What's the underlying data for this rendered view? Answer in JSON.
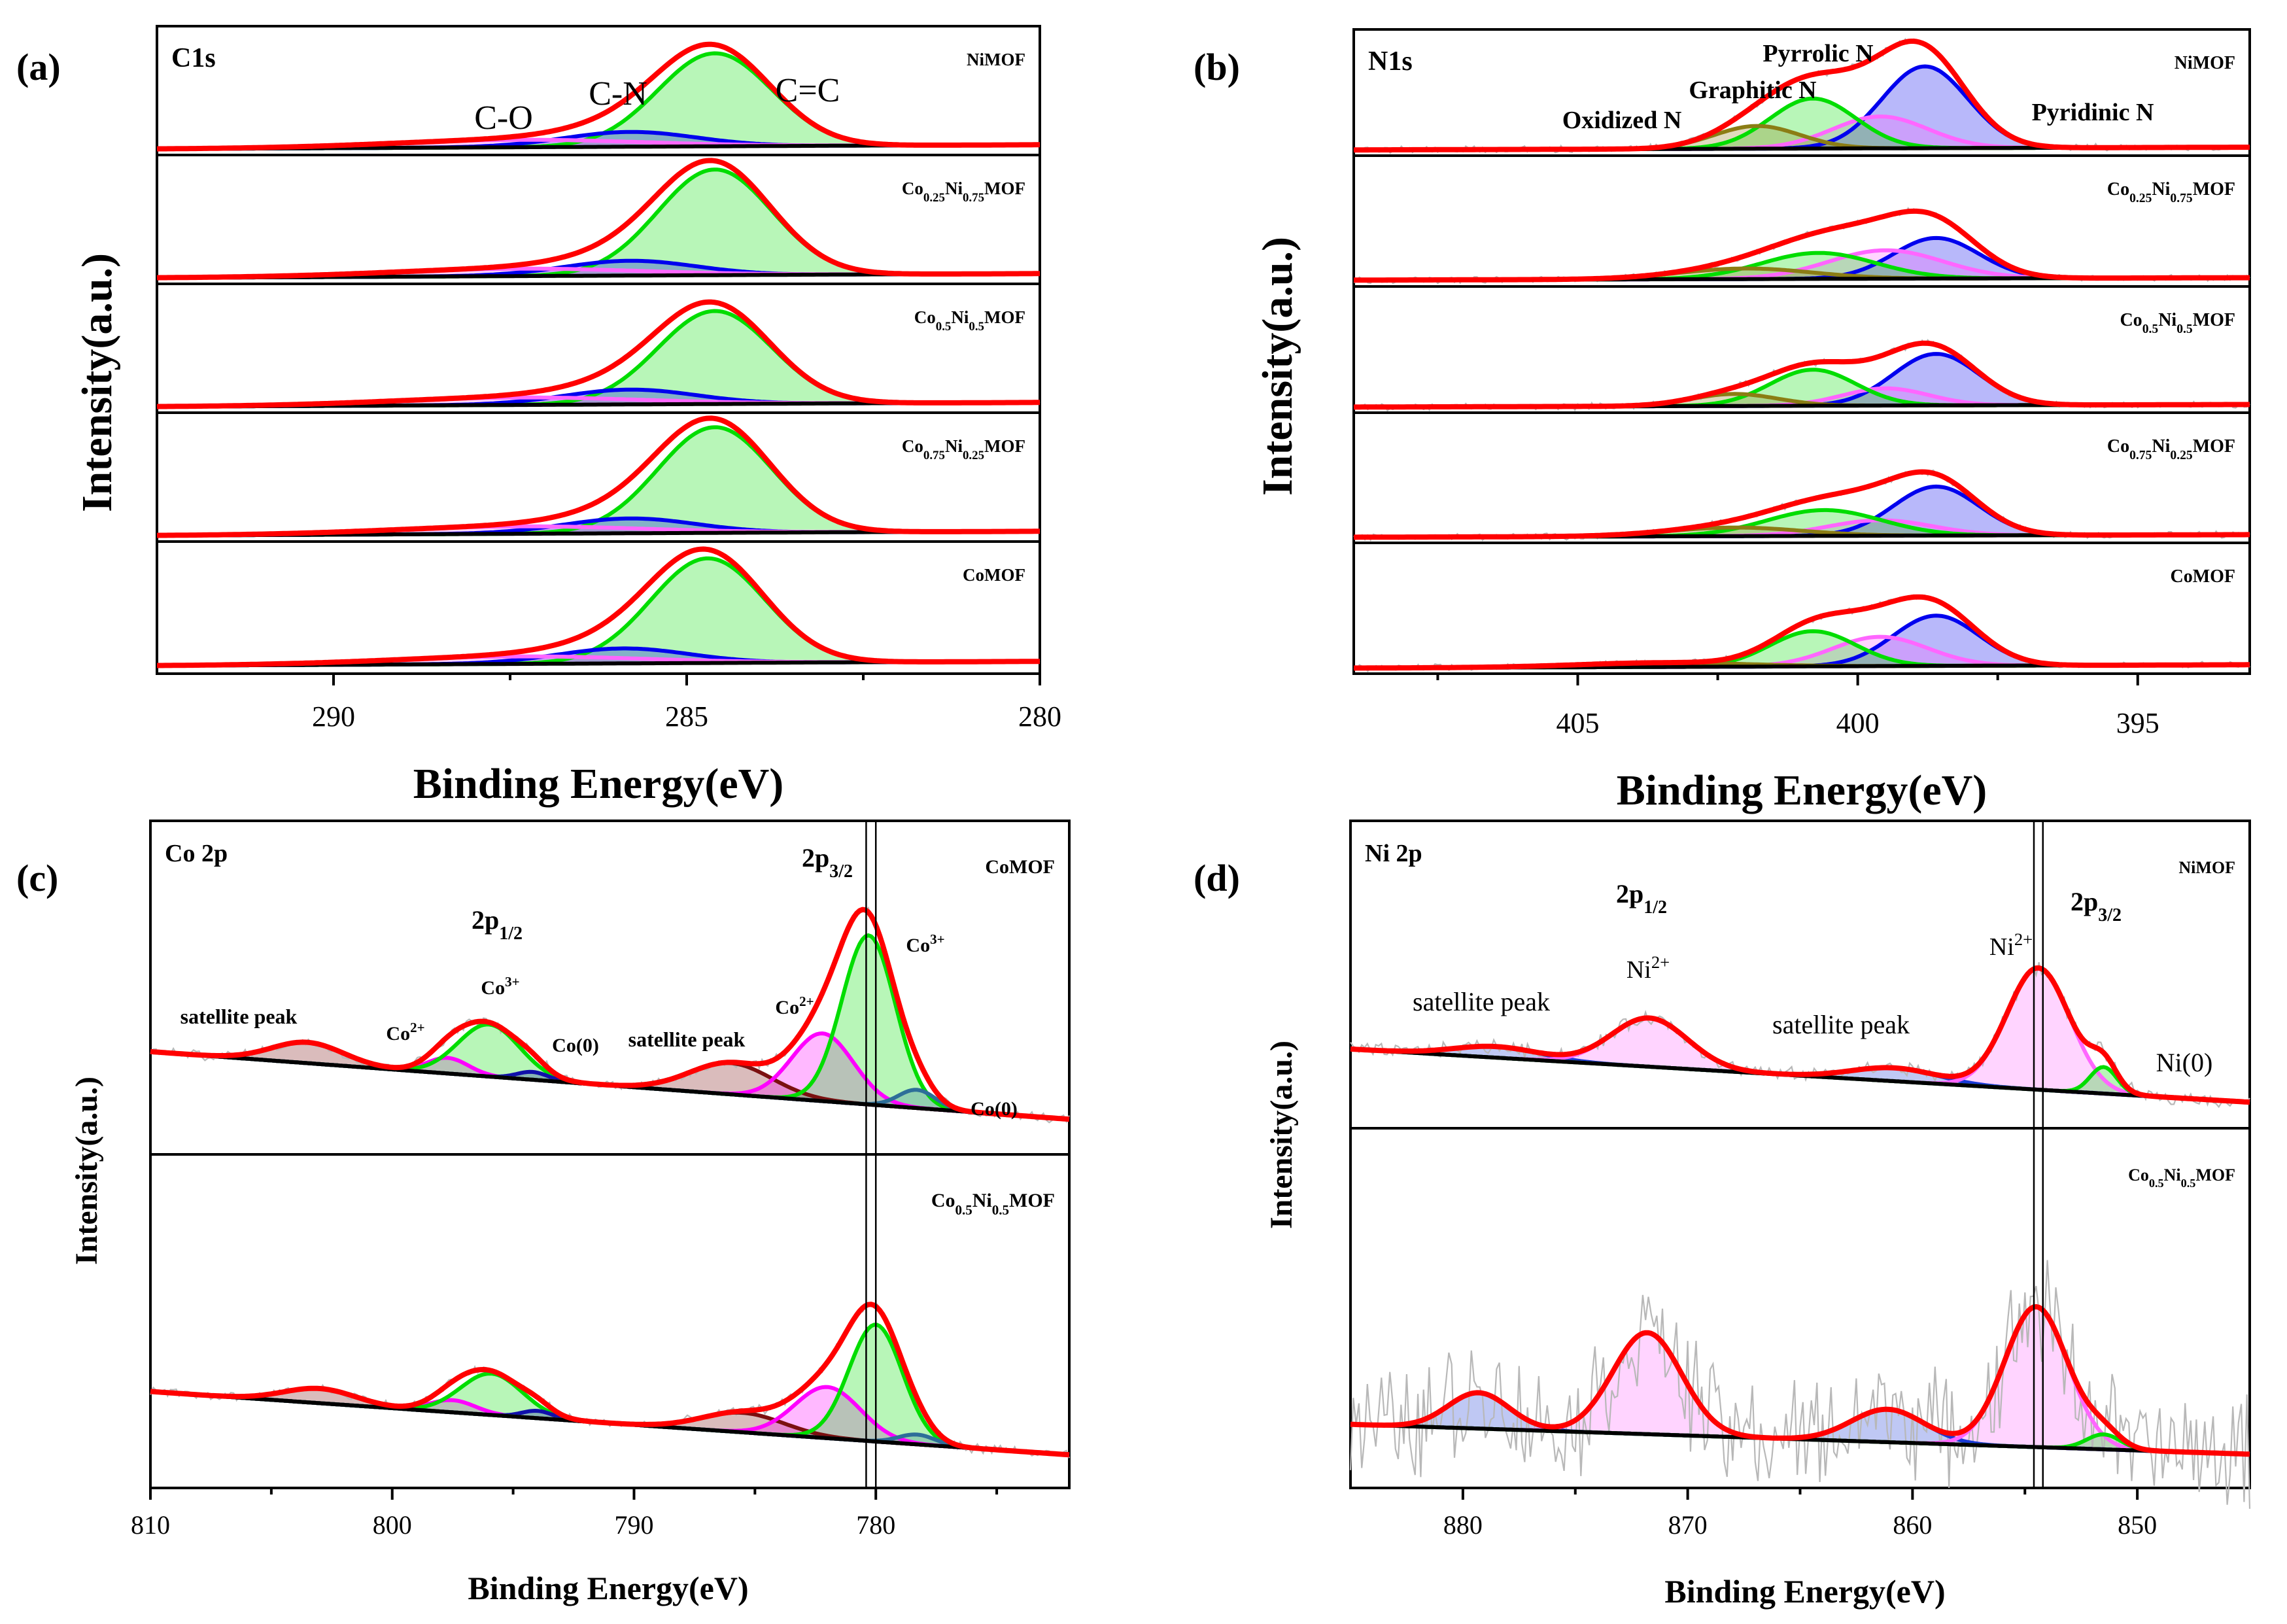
{
  "figure": {
    "panel_labels": [
      "(a)",
      "(b)",
      "(c)",
      "(d)"
    ],
    "colors": {
      "envelope": "#ff0000",
      "background": "#000000",
      "raw": "#b8b8b8",
      "green": "#00dd00",
      "blue": "#0000ee",
      "pink": "#ff66ff",
      "magenta": "#ff00ff",
      "olive": "#8b7d14",
      "brown": "#7b1010",
      "darkblue": "#1010aa",
      "steel": "#2d6e99"
    }
  },
  "chart_data": [
    {
      "id": "a",
      "type": "line",
      "title": "C1s",
      "xlabel": "Binding Energy(eV)",
      "ylabel": "Intensity(a.u.)",
      "xlim": [
        292.5,
        280
      ],
      "xticks": [
        290,
        285,
        280
      ],
      "xtick_labels": [
        "290",
        "285",
        "280"
      ],
      "peak_labels": [
        {
          "text": "C-O",
          "color": "#ff66ff"
        },
        {
          "text": "C-N",
          "color": "#0000ee"
        },
        {
          "text": "C=C",
          "color": "#00dd00"
        }
      ],
      "stacks": [
        {
          "sample": "NiMOF",
          "bg": [
            0.02,
            0.06
          ],
          "peaks": [
            {
              "label": "C=C",
              "center": 284.6,
              "fwhm": 1.9,
              "height": 0.88,
              "color": "#00dd00"
            },
            {
              "label": "C-N",
              "center": 285.8,
              "fwhm": 2.2,
              "height": 0.14,
              "color": "#0000ee"
            },
            {
              "label": "C-O",
              "center": 287.4,
              "fwhm": 4.2,
              "height": 0.07,
              "color": "#ff66ff"
            }
          ]
        },
        {
          "sample": "Co0.25Ni0.75MOF",
          "bg": [
            0.02,
            0.06
          ],
          "peaks": [
            {
              "label": "C=C",
              "center": 284.6,
              "fwhm": 1.9,
              "height": 1.0,
              "color": "#00dd00"
            },
            {
              "label": "C-N",
              "center": 285.8,
              "fwhm": 2.2,
              "height": 0.14,
              "color": "#0000ee"
            },
            {
              "label": "C-O",
              "center": 287.4,
              "fwhm": 4.2,
              "height": 0.07,
              "color": "#ff66ff"
            }
          ]
        },
        {
          "sample": "Co0.5Ni0.5MOF",
          "bg": [
            0.02,
            0.06
          ],
          "peaks": [
            {
              "label": "C=C",
              "center": 284.6,
              "fwhm": 1.9,
              "height": 0.88,
              "color": "#00dd00"
            },
            {
              "label": "C-N",
              "center": 285.8,
              "fwhm": 2.2,
              "height": 0.14,
              "color": "#0000ee"
            },
            {
              "label": "C-O",
              "center": 287.4,
              "fwhm": 4.2,
              "height": 0.07,
              "color": "#ff66ff"
            }
          ]
        },
        {
          "sample": "Co0.75Ni0.25MOF",
          "bg": [
            0.02,
            0.06
          ],
          "peaks": [
            {
              "label": "C=C",
              "center": 284.6,
              "fwhm": 1.9,
              "height": 1.0,
              "color": "#00dd00"
            },
            {
              "label": "C-N",
              "center": 285.8,
              "fwhm": 2.2,
              "height": 0.14,
              "color": "#0000ee"
            },
            {
              "label": "C-O",
              "center": 287.4,
              "fwhm": 4.2,
              "height": 0.07,
              "color": "#ff66ff"
            }
          ]
        },
        {
          "sample": "CoMOF",
          "bg": [
            0.02,
            0.06
          ],
          "peaks": [
            {
              "label": "C=C",
              "center": 284.7,
              "fwhm": 1.9,
              "height": 0.98,
              "color": "#00dd00"
            },
            {
              "label": "C-N",
              "center": 285.9,
              "fwhm": 2.2,
              "height": 0.14,
              "color": "#0000ee"
            },
            {
              "label": "C-O",
              "center": 287.4,
              "fwhm": 4.2,
              "height": 0.07,
              "color": "#ff66ff"
            }
          ]
        }
      ]
    },
    {
      "id": "b",
      "type": "line",
      "title": "N1s",
      "xlabel": "Binding Energy(eV)",
      "ylabel": "Intensity(a.u.)",
      "xlim": [
        409,
        393
      ],
      "xticks": [
        405,
        400,
        395
      ],
      "xtick_labels": [
        "405",
        "400",
        "395"
      ],
      "peak_labels": [
        {
          "text": "Oxidized N",
          "color": "#8b7d14"
        },
        {
          "text": "Graphitic N",
          "color": "#00bb00"
        },
        {
          "text": "Pyrrolic N",
          "color": "#ff66ff"
        },
        {
          "text": "Pyridinic N",
          "color": "#0000ee"
        }
      ],
      "stacks": [
        {
          "sample": "NiMOF",
          "bg": [
            0.02,
            0.05
          ],
          "peaks": [
            {
              "label": "Pyridinic N",
              "center": 398.8,
              "fwhm": 1.8,
              "height": 0.9,
              "color": "#0000ee"
            },
            {
              "label": "Pyrrolic N",
              "center": 399.6,
              "fwhm": 2.0,
              "height": 0.35,
              "color": "#ff66ff"
            },
            {
              "label": "Graphitic N",
              "center": 400.8,
              "fwhm": 1.8,
              "height": 0.55,
              "color": "#00dd00"
            },
            {
              "label": "Oxidized N",
              "center": 401.8,
              "fwhm": 1.8,
              "height": 0.25,
              "color": "#8b7d14"
            }
          ]
        },
        {
          "sample": "Co0.25Ni0.75MOF",
          "bg": [
            0.03,
            0.06
          ],
          "peaks": [
            {
              "label": "Pyridinic N",
              "center": 398.6,
              "fwhm": 1.8,
              "height": 0.5,
              "color": "#0000ee"
            },
            {
              "label": "Pyrrolic N",
              "center": 399.5,
              "fwhm": 2.4,
              "height": 0.35,
              "color": "#ff66ff"
            },
            {
              "label": "Graphitic N",
              "center": 400.7,
              "fwhm": 2.4,
              "height": 0.32,
              "color": "#00dd00"
            },
            {
              "label": "Oxidized N",
              "center": 402.0,
              "fwhm": 2.8,
              "height": 0.13,
              "color": "#8b7d14"
            }
          ]
        },
        {
          "sample": "Co0.5Ni0.5MOF",
          "bg": [
            0.02,
            0.05
          ],
          "peaks": [
            {
              "label": "Pyridinic N",
              "center": 398.6,
              "fwhm": 1.8,
              "height": 0.6,
              "color": "#0000ee"
            },
            {
              "label": "Pyrrolic N",
              "center": 399.5,
              "fwhm": 1.8,
              "height": 0.2,
              "color": "#ff66ff"
            },
            {
              "label": "Graphitic N",
              "center": 400.8,
              "fwhm": 1.8,
              "height": 0.42,
              "color": "#00dd00"
            },
            {
              "label": "Oxidized N",
              "center": 402.2,
              "fwhm": 1.8,
              "height": 0.14,
              "color": "#8b7d14"
            }
          ]
        },
        {
          "sample": "Co0.75Ni0.25MOF",
          "bg": [
            0.02,
            0.05
          ],
          "peaks": [
            {
              "label": "Pyridinic N",
              "center": 398.6,
              "fwhm": 1.8,
              "height": 0.57,
              "color": "#0000ee"
            },
            {
              "label": "Pyrrolic N",
              "center": 399.6,
              "fwhm": 2.2,
              "height": 0.18,
              "color": "#ff66ff"
            },
            {
              "label": "Graphitic N",
              "center": 400.6,
              "fwhm": 2.4,
              "height": 0.3,
              "color": "#00dd00"
            },
            {
              "label": "Oxidized N",
              "center": 402.2,
              "fwhm": 2.8,
              "height": 0.1,
              "color": "#8b7d14"
            }
          ]
        },
        {
          "sample": "CoMOF",
          "bg": [
            0.02,
            0.06
          ],
          "peaks": [
            {
              "label": "Pyridinic N",
              "center": 398.6,
              "fwhm": 1.8,
              "height": 0.6,
              "color": "#0000ee"
            },
            {
              "label": "Pyrrolic N",
              "center": 399.6,
              "fwhm": 2.0,
              "height": 0.35,
              "color": "#ff66ff"
            },
            {
              "label": "Graphitic N",
              "center": 400.8,
              "fwhm": 1.8,
              "height": 0.42,
              "color": "#00dd00"
            },
            {
              "label": "Oxidized N",
              "center": 403.5,
              "fwhm": 3.5,
              "height": 0.05,
              "color": "#8b7d14"
            }
          ]
        }
      ]
    },
    {
      "id": "c",
      "type": "line",
      "title": "Co 2p",
      "xlabel": "Binding Energy(eV)",
      "ylabel": "Intensity(a.u.)",
      "xlim": [
        810,
        772
      ],
      "xticks": [
        810,
        800,
        790,
        780
      ],
      "xtick_labels": [
        "810",
        "800",
        "790",
        "780"
      ],
      "reference_lines": [
        780.4,
        780.0
      ],
      "stacks": [
        {
          "sample": "CoMOF",
          "bg": [
            0.38,
            0.12
          ],
          "peaks": [
            {
              "label": "satellite peak",
              "center": 803.5,
              "fwhm": 3.5,
              "height": 0.08,
              "color": "#7b1010"
            },
            {
              "label": "Co2+",
              "center": 797.7,
              "fwhm": 2.0,
              "height": 0.06,
              "color": "#ff00ff"
            },
            {
              "label": "Co3+",
              "center": 796.0,
              "fwhm": 3.0,
              "height": 0.2,
              "color": "#00dd00"
            },
            {
              "label": "Co(0)",
              "center": 794.2,
              "fwhm": 1.5,
              "height": 0.03,
              "color": "#1010aa"
            },
            {
              "label": "satellite peak",
              "center": 786.0,
              "fwhm": 4.0,
              "height": 0.12,
              "color": "#7b1010"
            },
            {
              "label": "Co2+",
              "center": 782.2,
              "fwhm": 3.0,
              "height": 0.26,
              "color": "#ff00ff"
            },
            {
              "label": "Co3+",
              "center": 780.3,
              "fwhm": 2.6,
              "height": 0.65,
              "color": "#00dd00"
            },
            {
              "label": "Co(0)",
              "center": 778.3,
              "fwhm": 1.8,
              "height": 0.07,
              "color": "#2d6e99"
            }
          ]
        },
        {
          "sample": "Co0.5Ni0.5MOF",
          "bg": [
            0.38,
            0.12
          ],
          "peaks": [
            {
              "label": "satellite peak",
              "center": 803.0,
              "fwhm": 3.5,
              "height": 0.06,
              "color": "#7b1010"
            },
            {
              "label": "Co2+",
              "center": 797.5,
              "fwhm": 2.2,
              "height": 0.05,
              "color": "#ff00ff"
            },
            {
              "label": "Co3+",
              "center": 795.9,
              "fwhm": 3.0,
              "height": 0.17,
              "color": "#00dd00"
            },
            {
              "label": "Co(0)",
              "center": 794.0,
              "fwhm": 1.5,
              "height": 0.03,
              "color": "#1010aa"
            },
            {
              "label": "satellite peak",
              "center": 785.5,
              "fwhm": 4.0,
              "height": 0.08,
              "color": "#7b1010"
            },
            {
              "label": "Co2+",
              "center": 782.0,
              "fwhm": 3.2,
              "height": 0.21,
              "color": "#ff00ff"
            },
            {
              "label": "Co3+",
              "center": 780.0,
              "fwhm": 2.6,
              "height": 0.48,
              "color": "#00dd00"
            },
            {
              "label": "Co(0)",
              "center": 778.3,
              "fwhm": 1.8,
              "height": 0.04,
              "color": "#2d6e99"
            }
          ]
        }
      ],
      "annotations": [
        {
          "text": "satellite peak",
          "color": "#8a1540"
        },
        {
          "text": "Co",
          "sup": "2+",
          "color": "#ff00ff"
        },
        {
          "text": "2p",
          "sub": "1/2",
          "color": "#000000"
        },
        {
          "text": "Co",
          "sup": "3+",
          "color": "#00dd00"
        },
        {
          "text": "Co(0)",
          "color": "#1010aa"
        },
        {
          "text": "satellite peak",
          "color": "#8a1540"
        },
        {
          "text": "Co",
          "sup": "2+",
          "color": "#ff00ff"
        },
        {
          "text": "2p",
          "sub": "3/2",
          "color": "#000000"
        },
        {
          "text": "Co",
          "sup": "3+",
          "color": "#00dd00"
        },
        {
          "text": "Co(0)",
          "color": "#1010aa"
        }
      ]
    },
    {
      "id": "d",
      "type": "line",
      "title": "Ni 2p",
      "xlabel": "Binding Energy(eV)",
      "ylabel": "Intensity(a.u.)",
      "xlim": [
        885,
        845
      ],
      "xticks": [
        880,
        870,
        860,
        850
      ],
      "xtick_labels": [
        "880",
        "870",
        "860",
        "850"
      ],
      "reference_lines": [
        854.6,
        854.2
      ],
      "stacks": [
        {
          "sample": "NiMOF",
          "bg": [
            0.34,
            0.1
          ],
          "peaks": [
            {
              "label": "satellite peak",
              "center": 878.5,
              "fwhm": 4.5,
              "height": 0.05,
              "color": "#1a3ad6"
            },
            {
              "label": "Ni2+",
              "center": 871.7,
              "fwhm": 4.0,
              "height": 0.22,
              "color": "#ff66ff"
            },
            {
              "label": "satellite peak",
              "center": 860.8,
              "fwhm": 4.5,
              "height": 0.06,
              "color": "#1a3ad6"
            },
            {
              "label": "Ni2+",
              "center": 854.4,
              "fwhm": 3.3,
              "height": 0.55,
              "color": "#ff66ff"
            },
            {
              "label": "Ni(0)",
              "center": 851.5,
              "fwhm": 1.4,
              "height": 0.12,
              "color": "#00dd00"
            }
          ]
        },
        {
          "sample": "Co0.5Ni0.5MOF",
          "bg": [
            0.2,
            0.1
          ],
          "peaks": [
            {
              "label": "satellite peak",
              "center": 879.3,
              "fwhm": 3.2,
              "height": 0.12,
              "color": "#1a3ad6"
            },
            {
              "label": "Ni2+",
              "center": 871.8,
              "fwhm": 3.6,
              "height": 0.34,
              "color": "#ff66ff"
            },
            {
              "label": "satellite peak",
              "center": 861.1,
              "fwhm": 3.8,
              "height": 0.11,
              "color": "#1a3ad6"
            },
            {
              "label": "Ni2+",
              "center": 854.5,
              "fwhm": 3.3,
              "height": 0.47,
              "color": "#ff66ff"
            },
            {
              "label": "Ni(0)",
              "center": 851.5,
              "fwhm": 1.8,
              "height": 0.05,
              "color": "#00dd00"
            }
          ]
        }
      ],
      "annotations": [
        {
          "text": "satellite peak",
          "color": "#1a3ad6"
        },
        {
          "text": "2p",
          "sub": "1/2",
          "color": "#000000"
        },
        {
          "text": "Ni",
          "sup": "2+",
          "color": "#ff66ff"
        },
        {
          "text": "satellite peak",
          "color": "#1a3ad6"
        },
        {
          "text": "Ni",
          "sup": "2+",
          "color": "#ff66ff"
        },
        {
          "text": "2p",
          "sub": "3/2",
          "color": "#000000"
        },
        {
          "text": "Ni(0)",
          "color": "#00dd00"
        }
      ]
    }
  ],
  "sample_labels": [
    {
      "base": "NiMOF"
    },
    {
      "parts": [
        [
          "Co",
          ""
        ],
        [
          "0.25",
          "sub"
        ],
        [
          "Ni",
          ""
        ],
        [
          "0.75",
          "sub"
        ],
        [
          "MOF",
          ""
        ]
      ]
    },
    {
      "parts": [
        [
          "Co",
          ""
        ],
        [
          "0.5",
          "sub"
        ],
        [
          "Ni",
          ""
        ],
        [
          "0.5",
          "sub"
        ],
        [
          "MOF",
          ""
        ]
      ]
    },
    {
      "parts": [
        [
          "Co",
          ""
        ],
        [
          "0.75",
          "sub"
        ],
        [
          "Ni",
          ""
        ],
        [
          "0.25",
          "sub"
        ],
        [
          "MOF",
          ""
        ]
      ]
    },
    {
      "base": "CoMOF"
    }
  ]
}
